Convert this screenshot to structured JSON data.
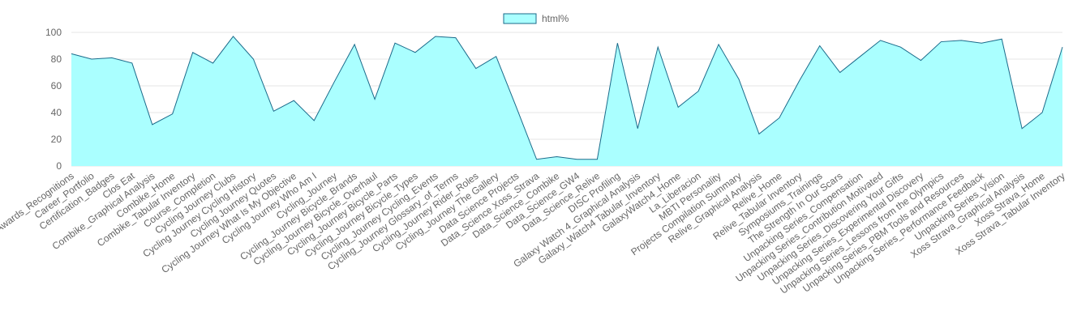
{
  "chart_data": {
    "type": "area",
    "series": [
      {
        "name": "html%",
        "fill": "#aaffff",
        "stroke": "#1a6a8a",
        "values": [
          84,
          80,
          81,
          77,
          31,
          39,
          85,
          77,
          97,
          80,
          41,
          49,
          34,
          63,
          91,
          50,
          92,
          85,
          97,
          96,
          73,
          82,
          44,
          5,
          7,
          5,
          5,
          92,
          28,
          89,
          44,
          56,
          91,
          65,
          24,
          36,
          64,
          90,
          70,
          82,
          94,
          89,
          79,
          93,
          94,
          92,
          95,
          28,
          40,
          89
        ]
      }
    ],
    "categories": [
      "Awards_Recognitions",
      "Career_Portfolio",
      "Certification_Badges",
      "Clos Eat",
      "Combike_Graphical Analysis",
      "Combike_Home",
      "Combike_Tabular Inventory",
      "Course_Completion",
      "Cycling Journey Clubs",
      "Cycling Journey Cycling History",
      "Cycling Journey Quotes",
      "Cycling Journey What Is My Objective",
      "Cycling Journey Who Am I",
      "Cycling_Journey",
      "Cycling_Journey Bicycle_Brands",
      "Cycling_Journey Bicycle_Overhaul",
      "Cycling_Journey Bicycle_Parts",
      "Cycling_Journey Bicycle_Types",
      "Cycling_Journey Cycling_Events",
      "Cycling_Journey Glossary_of_Terms",
      "Cycling_Journey Rider_Roles",
      "Cycling_Journey The Gallery",
      "Data Science Projects",
      "Data_Science Xoss_Strava",
      "Data_Science_Combike",
      "Data_Science_GW4",
      "Data_Science_Relive",
      "DISC Profiling",
      "Galaxy Watch 4_Graphical Analysis",
      "Galaxy_Watch4 Tabular_Inventory",
      "GalaxyWatch4_Home",
      "La_Liberacion",
      "MBTI Personality",
      "Projects Compilation Summary",
      "Relive_Graphical Analysis",
      "Relive_Home",
      "Relive_Tabular Inventory",
      "Symposiums_Trainings",
      "The Strength In Our Scars",
      "Unpacking Series_Compensation",
      "Unpacking Series_Contribution Motivated",
      "Unpacking Series_Discovering Your Gifts",
      "Unpacking Series_Experimental Discovery",
      "Unpacking Series_Lessons from the Olympics",
      "Unpacking Series_PBM Tools and Resources",
      "Unpacking Series_Performance Feedback",
      "Unpacking Series_Vision",
      "Xoss Strava_Graphical Analysis",
      "Xoss Strava_Home",
      "Xoss Strava_Tabular Inventory"
    ],
    "y_ticks": [
      "0",
      "20",
      "40",
      "60",
      "80",
      "100"
    ],
    "ylim": [
      0,
      100
    ],
    "grid": true,
    "legend_position": "top-center",
    "gridline_color": "#e6e6e6",
    "text_color": "#666666"
  }
}
